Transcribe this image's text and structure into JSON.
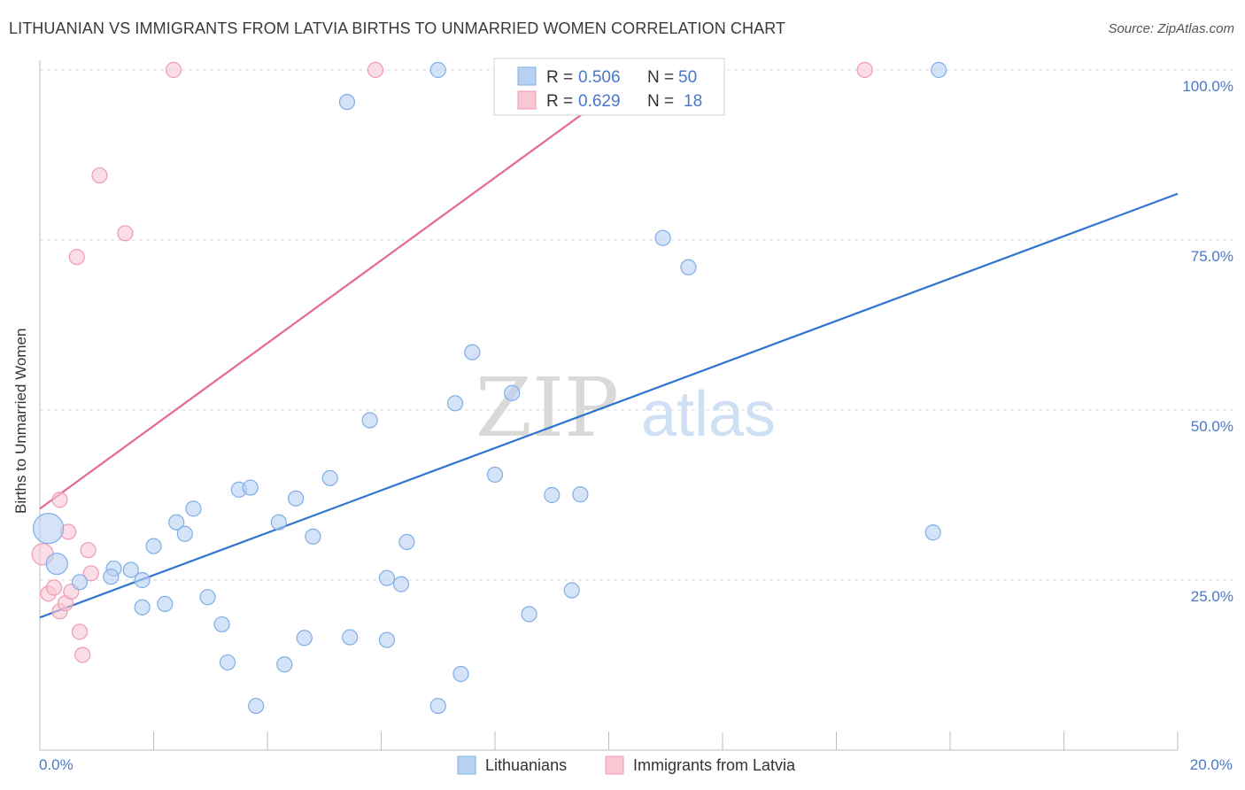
{
  "title": "LITHUANIAN VS IMMIGRANTS FROM LATVIA BIRTHS TO UNMARRIED WOMEN CORRELATION CHART",
  "source": "Source: ZipAtlas.com",
  "watermark": {
    "part1": "ZIP",
    "part2": "atlas"
  },
  "colors": {
    "blue_fill": "#b8d1f3",
    "blue_stroke": "#7faee6",
    "blue_line": "#2f74d0",
    "pink_fill": "#f9c7d4",
    "pink_stroke": "#ef9ab2",
    "pink_line": "#e6698f",
    "tick_label": "#4a78c8",
    "grid": "#d8d8d8"
  },
  "legend": {
    "rows": [
      {
        "r_label": "R =",
        "r_value": "0.506",
        "n_label": "N =",
        "n_value": "50"
      },
      {
        "r_label": "R =",
        "r_value": "0.629",
        "n_label": "N =",
        "n_value": "18"
      }
    ]
  },
  "chart_data": {
    "type": "scatter",
    "title": "LITHUANIAN VS IMMIGRANTS FROM LATVIA BIRTHS TO UNMARRIED WOMEN CORRELATION CHART",
    "xlabel": "",
    "ylabel": "Births to Unmarried Women",
    "xlim": [
      0,
      20
    ],
    "ylim": [
      0,
      100
    ],
    "x_tick_labels": [
      "0.0%",
      "20.0%"
    ],
    "y_ticks": [
      25,
      50,
      75,
      100
    ],
    "y_tick_labels": [
      "25.0%",
      "50.0%",
      "75.0%",
      "100.0%"
    ],
    "grid": true,
    "legend_position": "bottom",
    "series": [
      {
        "name": "Lithuanians",
        "r": 0.506,
        "n": 50,
        "points": [
          [
            0.15,
            32.6,
            3
          ],
          [
            0.3,
            27.4,
            2
          ],
          [
            0.7,
            24.7,
            1
          ],
          [
            1.3,
            26.7,
            1
          ],
          [
            1.25,
            25.5,
            1
          ],
          [
            1.6,
            26.5,
            1
          ],
          [
            1.8,
            25.0,
            1
          ],
          [
            1.8,
            21.0,
            1
          ],
          [
            2.0,
            30.0,
            1
          ],
          [
            2.2,
            21.5,
            1
          ],
          [
            2.4,
            33.5,
            1
          ],
          [
            2.55,
            31.8,
            1
          ],
          [
            2.7,
            35.5,
            1
          ],
          [
            2.95,
            22.5,
            1
          ],
          [
            3.2,
            18.5,
            1
          ],
          [
            3.3,
            12.9,
            1
          ],
          [
            3.5,
            38.3,
            1
          ],
          [
            3.7,
            38.6,
            1
          ],
          [
            3.8,
            6.5,
            1
          ],
          [
            4.2,
            33.5,
            1
          ],
          [
            4.3,
            12.6,
            1
          ],
          [
            4.5,
            37.0,
            1
          ],
          [
            4.65,
            16.5,
            1
          ],
          [
            4.8,
            31.4,
            1
          ],
          [
            5.1,
            40.0,
            1
          ],
          [
            5.4,
            95.3,
            1
          ],
          [
            5.45,
            16.6,
            1
          ],
          [
            5.8,
            48.5,
            1
          ],
          [
            6.1,
            25.3,
            1
          ],
          [
            6.1,
            16.2,
            1
          ],
          [
            6.35,
            24.4,
            1
          ],
          [
            6.45,
            30.6,
            1
          ],
          [
            7.0,
            100.0,
            1
          ],
          [
            7.0,
            6.5,
            1
          ],
          [
            7.3,
            51.0,
            1
          ],
          [
            7.4,
            11.2,
            1
          ],
          [
            7.6,
            58.5,
            1
          ],
          [
            8.0,
            40.5,
            1
          ],
          [
            8.3,
            52.5,
            1
          ],
          [
            8.6,
            20.0,
            1
          ],
          [
            9.0,
            37.5,
            1
          ],
          [
            9.35,
            23.5,
            1
          ],
          [
            9.5,
            37.6,
            1
          ],
          [
            10.95,
            75.3,
            1
          ],
          [
            11.4,
            71.0,
            1
          ],
          [
            11.9,
            100.0,
            1
          ],
          [
            15.7,
            32.0,
            1
          ],
          [
            15.8,
            100.0,
            1
          ]
        ],
        "trendline": {
          "x": [
            0,
            20
          ],
          "y": [
            19.5,
            81.8
          ]
        }
      },
      {
        "name": "Immigrants from Latvia",
        "r": 0.629,
        "n": 18,
        "points": [
          [
            0.05,
            28.8,
            2
          ],
          [
            0.15,
            23.0,
            1
          ],
          [
            0.25,
            23.9,
            1
          ],
          [
            0.35,
            20.4,
            1
          ],
          [
            0.35,
            36.8,
            1
          ],
          [
            0.45,
            21.6,
            1
          ],
          [
            0.5,
            32.1,
            1
          ],
          [
            0.55,
            23.3,
            1
          ],
          [
            0.7,
            17.4,
            1
          ],
          [
            0.75,
            14.0,
            1
          ],
          [
            0.85,
            29.4,
            1
          ],
          [
            0.9,
            26.0,
            1
          ],
          [
            1.05,
            84.5,
            1
          ],
          [
            0.65,
            72.5,
            1
          ],
          [
            1.5,
            76.0,
            1
          ],
          [
            2.35,
            100.0,
            1
          ],
          [
            5.9,
            100.0,
            1
          ],
          [
            14.5,
            100.0,
            1
          ]
        ],
        "trendline": {
          "x": [
            0,
            10.6
          ],
          "y": [
            35.5,
            100.0
          ]
        }
      }
    ]
  }
}
